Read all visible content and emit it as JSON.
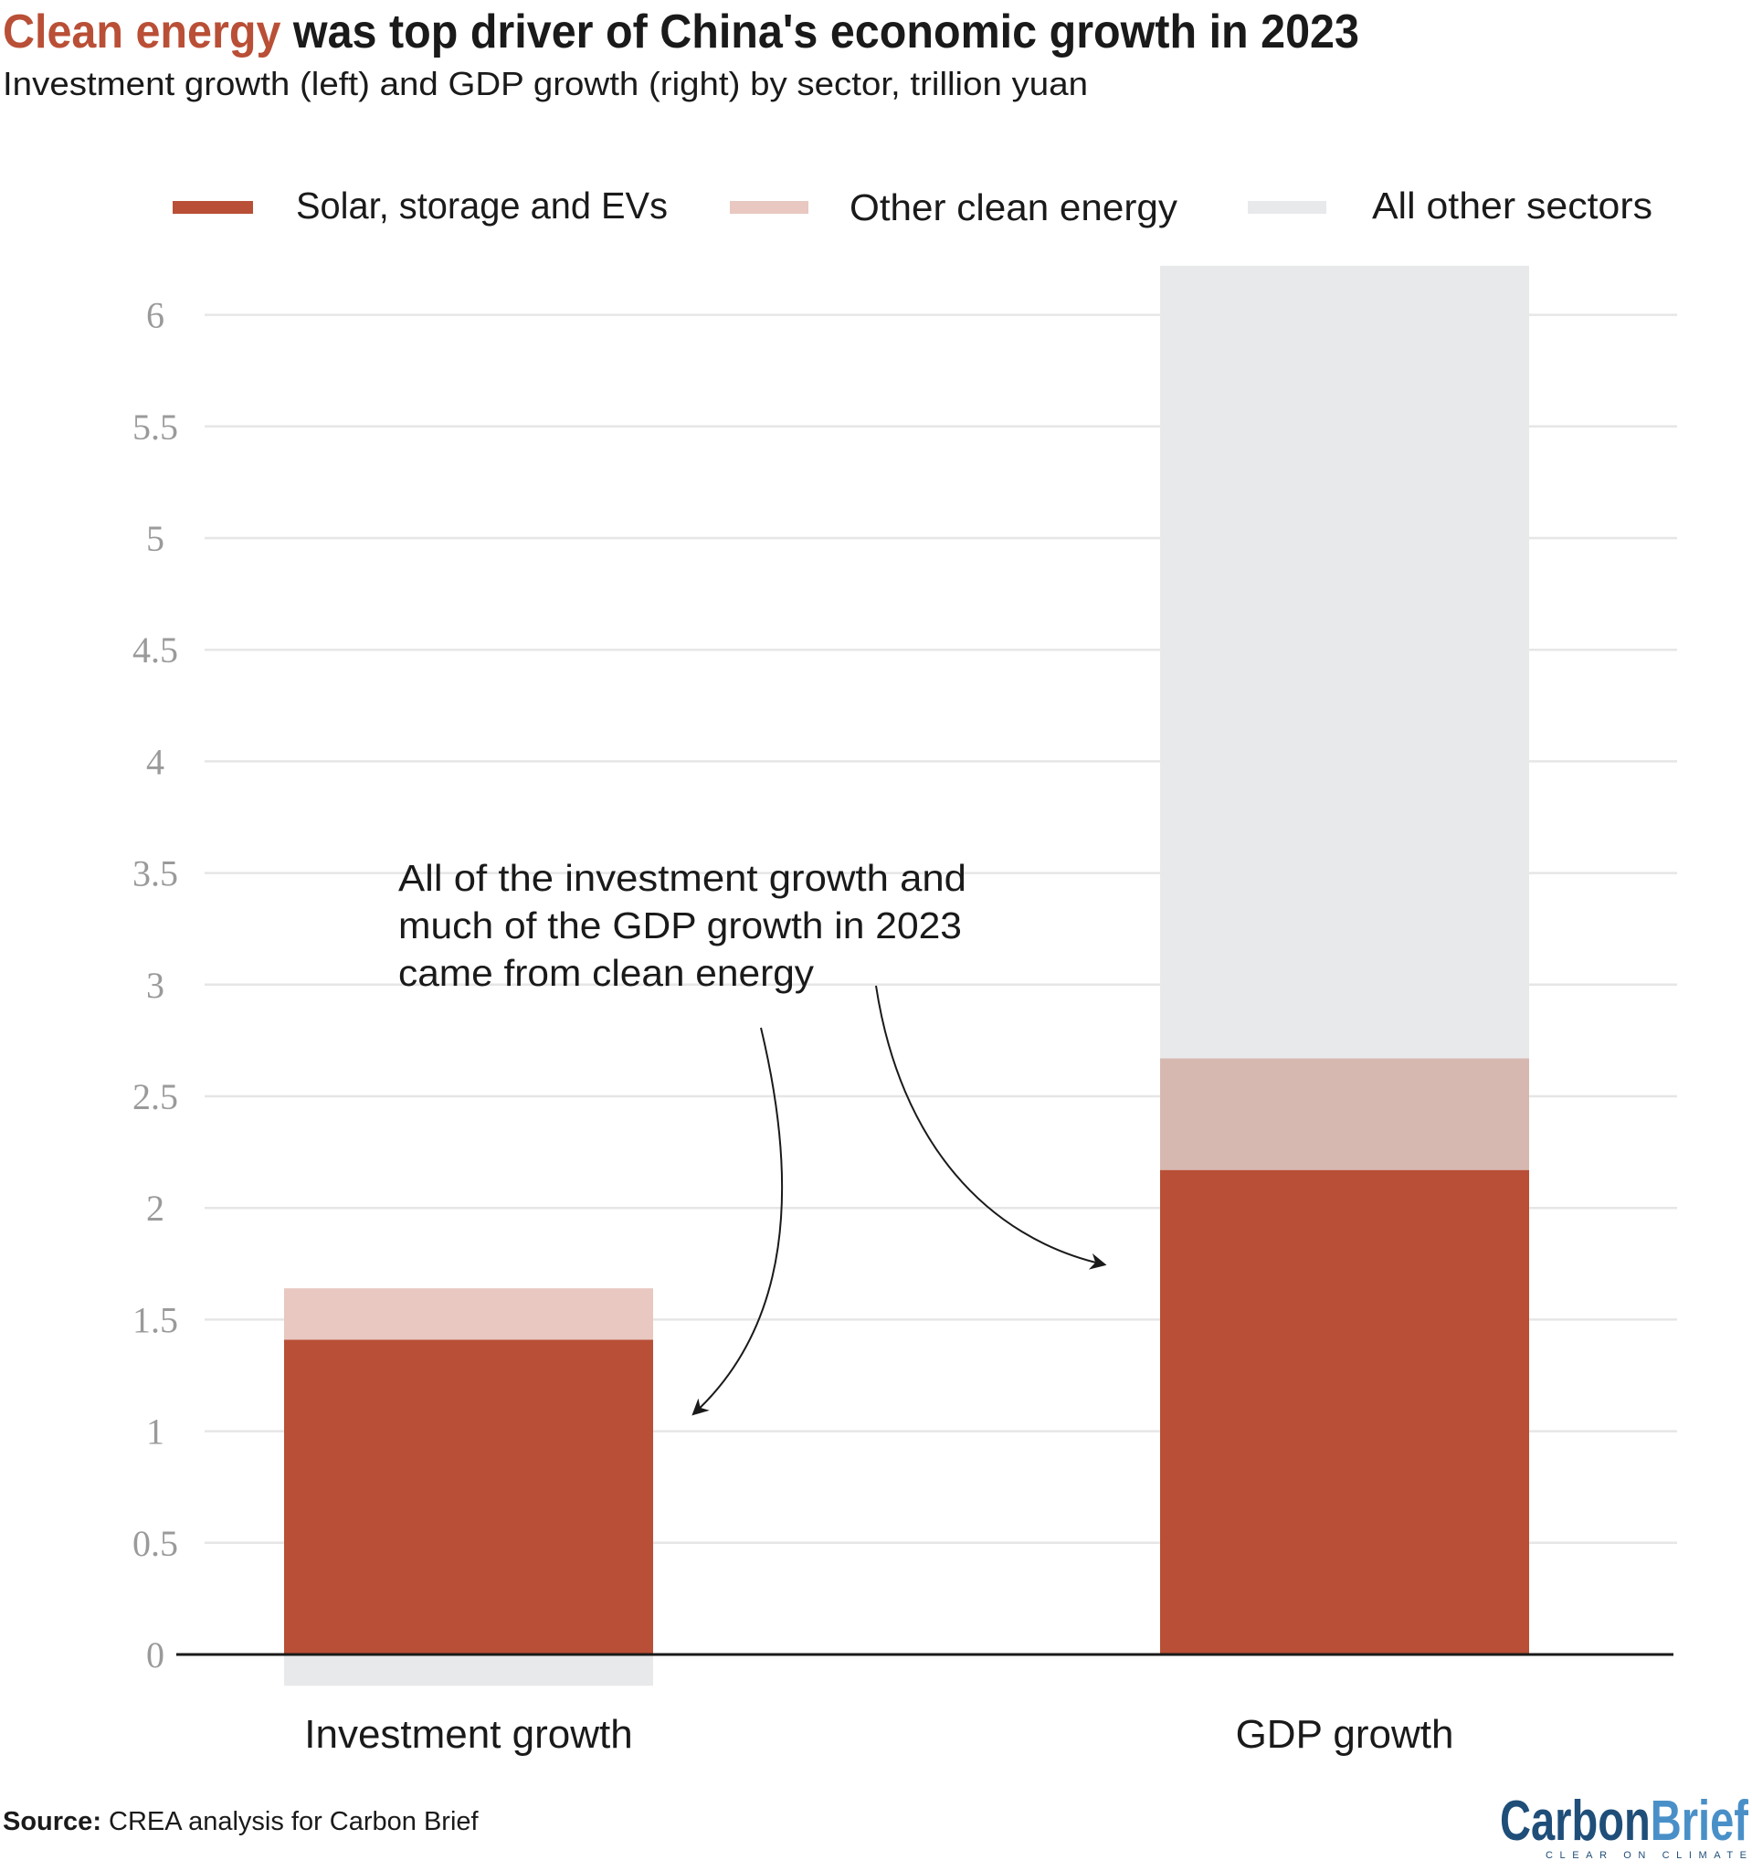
{
  "title": {
    "highlight": "Clean energy",
    "rest": " was top driver of China's economic growth in 2023"
  },
  "subtitle": "Investment growth (left) and GDP growth (right) by sector, trillion yuan",
  "annotation": [
    "All of the investment growth and",
    "much of the GDP growth in 2023",
    "came from clean energy"
  ],
  "source": {
    "label": "Source:",
    "text": " CREA analysis for Carbon Brief"
  },
  "logo": {
    "part1": "Carbon",
    "part2": "Brief",
    "tagline": "CLEAR ON CLIMATE"
  },
  "colors": {
    "title_highlight": "#b94f36",
    "solar": "#b94f36",
    "other_clean": "#e8c8c0",
    "other_clean_gdp": "#d6b8b1",
    "other_sectors": "#e8e9eb",
    "logo_dark": "#1f4e79",
    "logo_light": "#4a90c8"
  },
  "chart_data": {
    "type": "bar",
    "stacked": true,
    "categories": [
      "Investment growth",
      "GDP growth"
    ],
    "series": [
      {
        "name": "Solar, storage and EVs",
        "values": [
          1.41,
          2.17
        ]
      },
      {
        "name": "Other clean energy",
        "values": [
          0.23,
          0.5
        ]
      },
      {
        "name": "All other sectors",
        "values": [
          -0.14,
          3.55
        ]
      }
    ],
    "ylim": [
      0,
      6.2
    ],
    "yticks": [
      "0",
      "0.5",
      "1",
      "1.5",
      "2",
      "2.5",
      "3",
      "3.5",
      "4",
      "4.5",
      "5",
      "5.5",
      "6"
    ],
    "grid": true,
    "legend": "top"
  }
}
